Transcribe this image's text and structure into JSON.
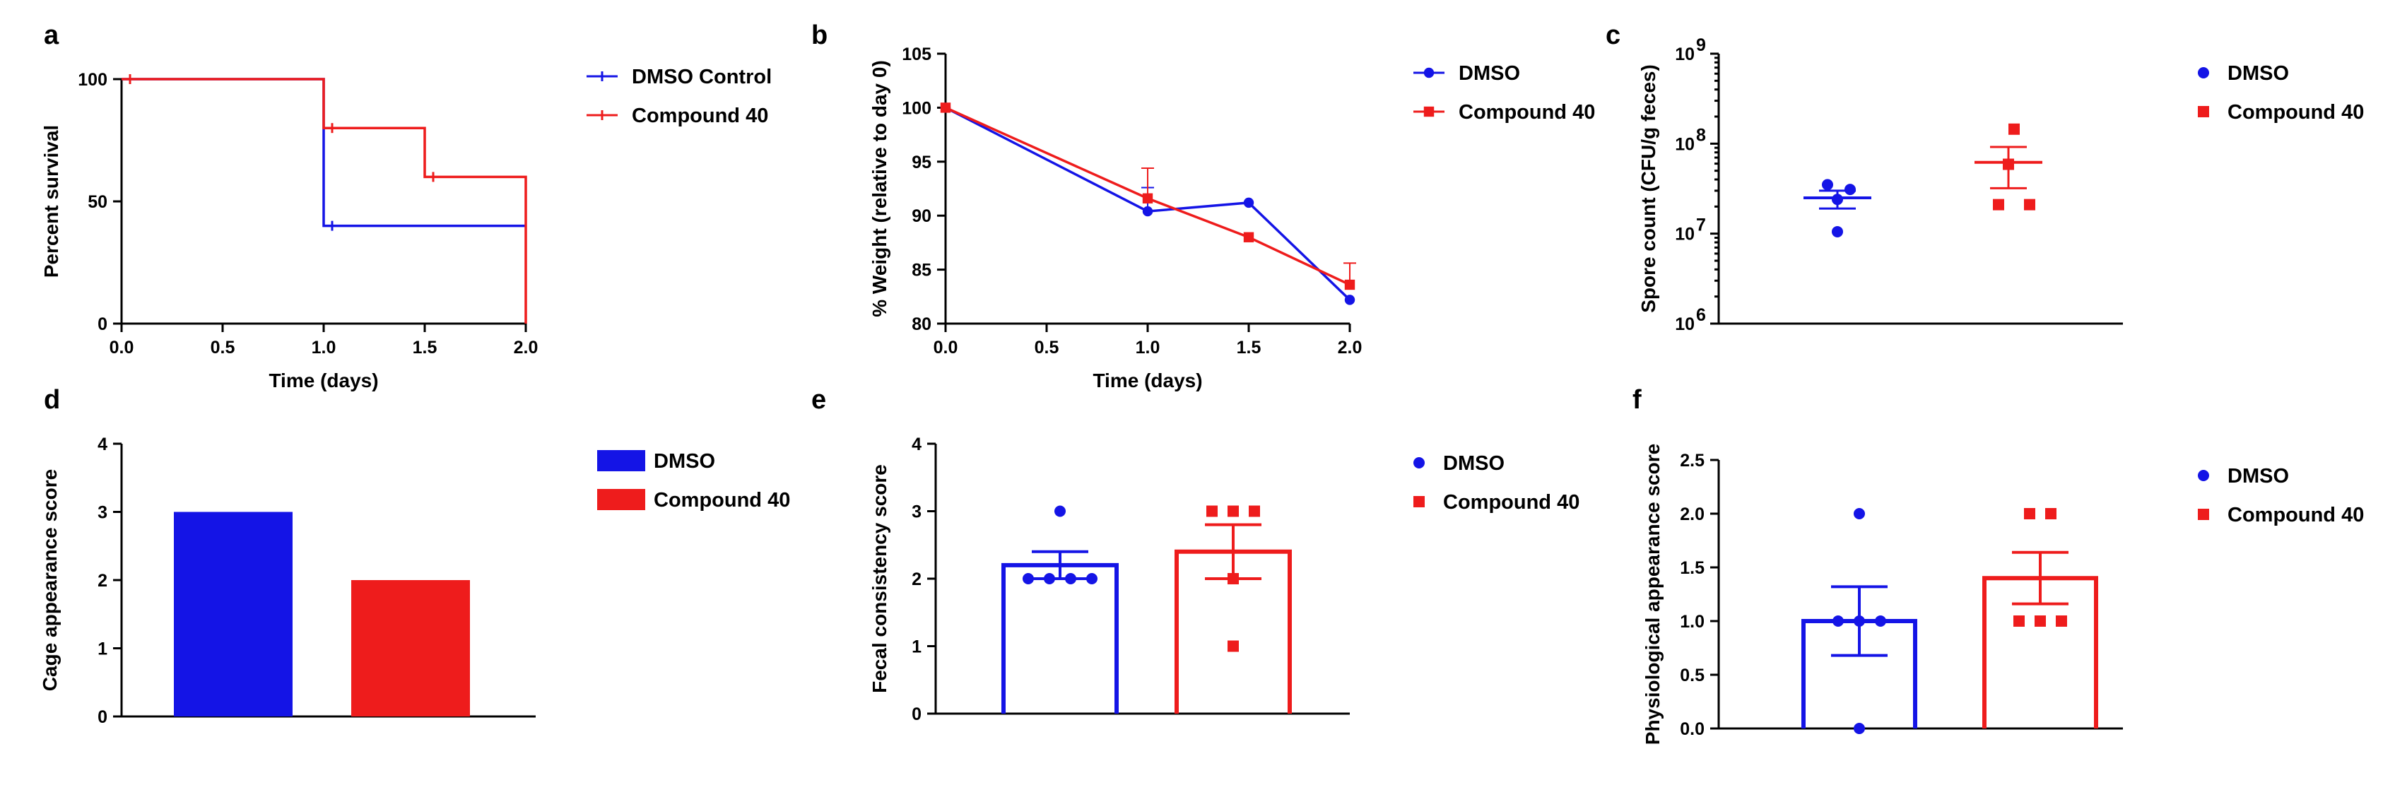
{
  "colors": {
    "dmso": "#1414e6",
    "compound": "#ee1c1c",
    "axis": "#000000"
  },
  "chart_data": [
    {
      "panel": "a",
      "type": "line",
      "step": true,
      "xlabel": "Time (days)",
      "ylabel": "Percent survival",
      "xlim": [
        0,
        2
      ],
      "ylim": [
        0,
        100
      ],
      "xticks": [
        0,
        0.5,
        1,
        1.5,
        2
      ],
      "xtick_labels": [
        "0.0",
        "0.5",
        "1.0",
        "1.5",
        "2.0"
      ],
      "yticks": [
        0,
        50,
        100
      ],
      "ytick_labels": [
        "0",
        "50",
        "100"
      ],
      "series": [
        {
          "name": "DMSO Control",
          "color": "dmso",
          "marker": "tick",
          "x": [
            0,
            1,
            1,
            2
          ],
          "y": [
            100,
            100,
            40,
            40
          ]
        },
        {
          "name": "Compound 40",
          "color": "compound",
          "marker": "tick",
          "x": [
            0,
            1,
            1,
            1.5,
            1.5,
            2,
            2
          ],
          "y": [
            100,
            100,
            80,
            80,
            60,
            60,
            0
          ]
        }
      ]
    },
    {
      "panel": "b",
      "type": "line",
      "xlabel": "Time (days)",
      "ylabel": "% Weight (relative to day 0)",
      "xlim": [
        0,
        2
      ],
      "ylim": [
        80,
        105
      ],
      "xticks": [
        0,
        0.5,
        1,
        1.5,
        2
      ],
      "xtick_labels": [
        "0.0",
        "0.5",
        "1.0",
        "1.5",
        "2.0"
      ],
      "yticks": [
        80,
        85,
        90,
        95,
        100,
        105
      ],
      "ytick_labels": [
        "80",
        "85",
        "90",
        "95",
        "100",
        "105"
      ],
      "series": [
        {
          "name": "DMSO",
          "color": "dmso",
          "marker": "circle",
          "x": [
            0,
            1,
            1.5,
            2
          ],
          "y": [
            100,
            90.4,
            91.2,
            82.2
          ],
          "err": [
            0,
            2.2,
            0,
            0
          ]
        },
        {
          "name": "Compound 40",
          "color": "compound",
          "marker": "square",
          "x": [
            0,
            1,
            1.5,
            2
          ],
          "y": [
            100,
            91.6,
            88,
            83.6
          ],
          "err": [
            0,
            2.8,
            0,
            2
          ]
        }
      ]
    },
    {
      "panel": "c",
      "type": "scatter",
      "yscale": "log",
      "ylabel": "Spore count (CFU/g feces)",
      "xlabel": "",
      "ylim": [
        1000000,
        1000000000
      ],
      "yticks": [
        1000000,
        10000000,
        100000000,
        1000000000
      ],
      "ytick_labels": [
        "10",
        "10",
        "10",
        "10"
      ],
      "ytick_exps": [
        "6",
        "7",
        "8",
        "9"
      ],
      "series": [
        {
          "name": "DMSO",
          "color": "dmso",
          "marker": "circle",
          "values": [
            35000000,
            31000000,
            24000000,
            10500000
          ],
          "mean": 25000000,
          "sem_low": 19000000,
          "sem_high": 30000000
        },
        {
          "name": "Compound 40",
          "color": "compound",
          "marker": "square",
          "values": [
            145000000,
            59000000,
            21000000,
            21000000
          ],
          "mean": 62000000,
          "sem_low": 32000000,
          "sem_high": 92000000
        }
      ]
    },
    {
      "panel": "d",
      "type": "bar",
      "ylabel": "Cage appearance score",
      "xlabel": "",
      "ylim": [
        0,
        4
      ],
      "yticks": [
        0,
        1,
        2,
        3,
        4
      ],
      "ytick_labels": [
        "0",
        "1",
        "2",
        "3",
        "4"
      ],
      "series": [
        {
          "name": "DMSO",
          "color": "dmso",
          "value": 3
        },
        {
          "name": "Compound 40",
          "color": "compound",
          "value": 2
        }
      ]
    },
    {
      "panel": "e",
      "type": "bar",
      "style": "outline-bar-scatter",
      "ylabel": "Fecal consistency score",
      "xlabel": "",
      "ylim": [
        0,
        4
      ],
      "yticks": [
        0,
        1,
        2,
        3,
        4
      ],
      "ytick_labels": [
        "0",
        "1",
        "2",
        "3",
        "4"
      ],
      "series": [
        {
          "name": "DMSO",
          "color": "dmso",
          "marker": "circle",
          "value": 2.2,
          "sem": 0.2,
          "points": [
            3,
            2,
            2,
            2,
            2
          ]
        },
        {
          "name": "Compound 40",
          "color": "compound",
          "marker": "square",
          "value": 2.4,
          "sem": 0.4,
          "points": [
            3,
            3,
            3,
            2,
            1
          ]
        }
      ]
    },
    {
      "panel": "f",
      "type": "bar",
      "style": "outline-bar-scatter",
      "ylabel": "Physiological appearance score",
      "xlabel": "",
      "ylim": [
        0,
        2.5
      ],
      "yticks": [
        0,
        0.5,
        1,
        1.5,
        2,
        2.5
      ],
      "ytick_labels": [
        "0.0",
        "0.5",
        "1.0",
        "1.5",
        "2.0",
        "2.5"
      ],
      "series": [
        {
          "name": "DMSO",
          "color": "dmso",
          "marker": "circle",
          "value": 1.0,
          "sem": 0.32,
          "points": [
            2,
            1,
            1,
            1,
            0
          ]
        },
        {
          "name": "Compound 40",
          "color": "compound",
          "marker": "square",
          "value": 1.4,
          "sem": 0.24,
          "points": [
            2,
            2,
            1,
            1,
            1
          ]
        }
      ]
    }
  ]
}
